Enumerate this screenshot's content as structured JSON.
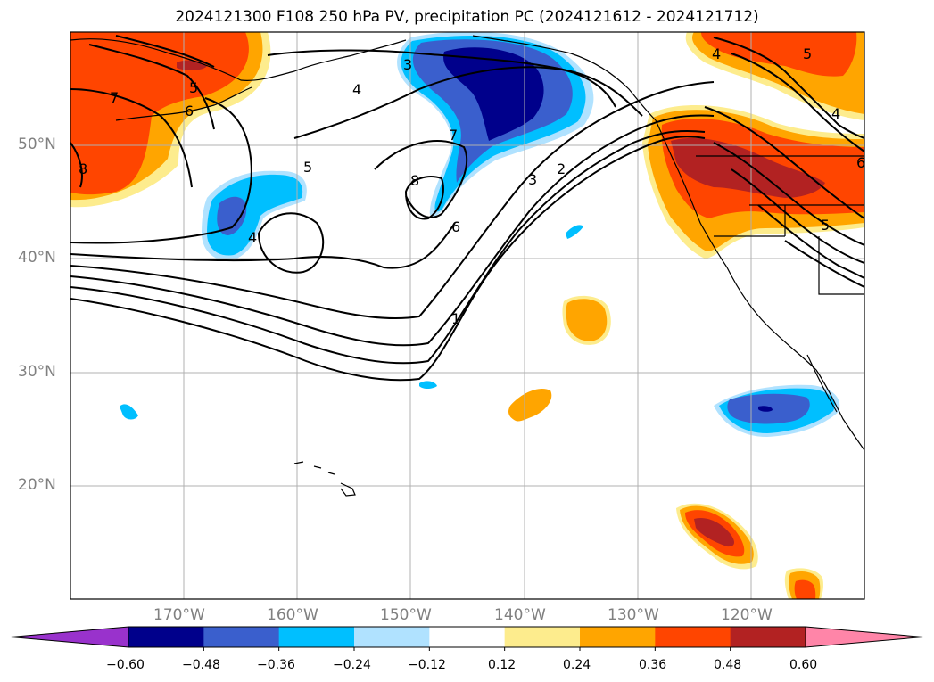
{
  "title": "2024121300 F108 250 hPa PV, precipitation PC (2024121612 - 2024121712)",
  "lat_labels": [
    "50°N",
    "40°N",
    "30°N",
    "20°N"
  ],
  "lon_labels": [
    "170°W",
    "160°W",
    "150°W",
    "140°W",
    "130°W",
    "120°W"
  ],
  "contour_labels": [
    {
      "id": "c3a",
      "text": "3"
    },
    {
      "id": "c4a",
      "text": "4"
    },
    {
      "id": "c5a",
      "text": "5"
    },
    {
      "id": "c7a",
      "text": "7"
    },
    {
      "id": "c8a",
      "text": "8"
    },
    {
      "id": "c6a",
      "text": "6"
    },
    {
      "id": "c5b",
      "text": "5"
    },
    {
      "id": "c7b",
      "text": "7"
    },
    {
      "id": "c8b",
      "text": "8"
    },
    {
      "id": "c4b",
      "text": "4"
    },
    {
      "id": "c3b",
      "text": "3"
    },
    {
      "id": "c2a",
      "text": "2"
    },
    {
      "id": "c6b",
      "text": "6"
    },
    {
      "id": "c1a",
      "text": "1"
    },
    {
      "id": "c4c",
      "text": "4"
    },
    {
      "id": "c5c",
      "text": "5"
    },
    {
      "id": "c4d",
      "text": "4"
    },
    {
      "id": "c6c",
      "text": "6"
    },
    {
      "id": "c5d",
      "text": "5"
    }
  ],
  "colorbar": {
    "colors": [
      "#9932cc",
      "#00008b",
      "#3a5fcd",
      "#00bfff",
      "#b0e2ff",
      "#ffffff",
      "#fdec8d",
      "#ffa500",
      "#ff4500",
      "#b22222",
      "#ff85a8"
    ],
    "ticks": [
      "−0.60",
      "−0.48",
      "−0.36",
      "−0.24",
      "−0.12",
      "0.12",
      "0.24",
      "0.36",
      "0.48",
      "0.60"
    ]
  }
}
